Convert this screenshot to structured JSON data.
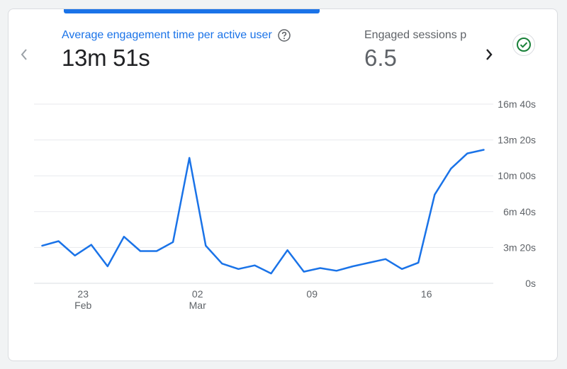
{
  "metrics": [
    {
      "label": "Average engagement time per active user",
      "value": "13m 51s",
      "active": true
    },
    {
      "label": "Engaged sessions p",
      "value": "6.5",
      "active": false
    }
  ],
  "icons": {
    "prev": "chevron-left-icon",
    "next": "chevron-right-icon",
    "help": "help-circle-icon",
    "status": "check-circle-icon"
  },
  "colors": {
    "accent": "#1a73e8",
    "line": "#1a73e8",
    "status_green": "#188038",
    "muted_text": "#5f6368"
  },
  "chart_data": {
    "type": "line",
    "y_unit": "seconds",
    "ylim": [
      0,
      1000
    ],
    "y_ticks": [
      {
        "value": 0,
        "label": "0s"
      },
      {
        "value": 200,
        "label": "3m 20s"
      },
      {
        "value": 400,
        "label": "6m 40s"
      },
      {
        "value": 600,
        "label": "10m 00s"
      },
      {
        "value": 800,
        "label": "13m 20s"
      },
      {
        "value": 1000,
        "label": "16m 40s"
      }
    ],
    "x_ticks": [
      {
        "label": "23",
        "sublabel": "Feb",
        "day": 3
      },
      {
        "label": "02",
        "sublabel": "Mar",
        "day": 10
      },
      {
        "label": "09",
        "sublabel": "",
        "day": 17
      },
      {
        "label": "16",
        "sublabel": "",
        "day": 24
      }
    ],
    "x_domain": [
      0,
      28
    ],
    "series": [
      {
        "values": [
          210,
          235,
          155,
          215,
          95,
          260,
          180,
          180,
          230,
          700,
          210,
          110,
          80,
          100,
          55,
          185,
          65,
          85,
          70,
          95,
          115,
          135,
          80,
          115,
          495,
          640,
          725,
          745
        ]
      }
    ],
    "grid": true,
    "legend": "none"
  }
}
